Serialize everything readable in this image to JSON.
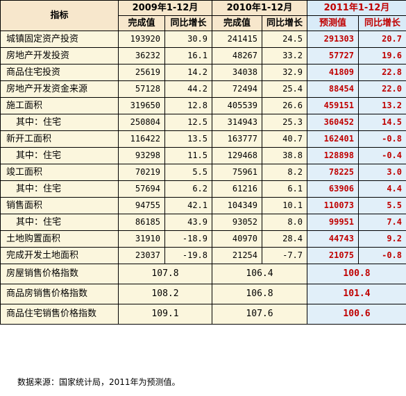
{
  "header": {
    "indicator": "指标",
    "periods": [
      "2009年1-12月",
      "2010年1-12月",
      "2011年1-12月"
    ],
    "sub": [
      "完成值",
      "同比增长",
      "完成值",
      "同比增长",
      "预测值",
      "同比增长"
    ]
  },
  "rows": [
    {
      "name": "城镇固定资产投资",
      "sub": false,
      "v": [
        "193920",
        "30.9",
        "241415",
        "24.5",
        "291303",
        "20.7"
      ]
    },
    {
      "name": "房地产开发投资",
      "sub": false,
      "v": [
        "36232",
        "16.1",
        "48267",
        "33.2",
        "57727",
        "19.6"
      ]
    },
    {
      "name": "商品住宅投资",
      "sub": false,
      "v": [
        "25619",
        "14.2",
        "34038",
        "32.9",
        "41809",
        "22.8"
      ]
    },
    {
      "name": "房地产开发资金来源",
      "sub": false,
      "v": [
        "57128",
        "44.2",
        "72494",
        "25.4",
        "88454",
        "22.0"
      ]
    },
    {
      "name": "施工面积",
      "sub": false,
      "v": [
        "319650",
        "12.8",
        "405539",
        "26.6",
        "459151",
        "13.2"
      ]
    },
    {
      "name": "其中：住宅",
      "sub": true,
      "v": [
        "250804",
        "12.5",
        "314943",
        "25.3",
        "360452",
        "14.5"
      ]
    },
    {
      "name": "新开工面积",
      "sub": false,
      "v": [
        "116422",
        "13.5",
        "163777",
        "40.7",
        "162401",
        "-0.8"
      ]
    },
    {
      "name": "其中：住宅",
      "sub": true,
      "v": [
        "93298",
        "11.5",
        "129468",
        "38.8",
        "128898",
        "-0.4"
      ]
    },
    {
      "name": "竣工面积",
      "sub": false,
      "v": [
        "70219",
        "5.5",
        "75961",
        "8.2",
        "78225",
        "3.0"
      ]
    },
    {
      "name": "其中：住宅",
      "sub": true,
      "v": [
        "57694",
        "6.2",
        "61216",
        "6.1",
        "63906",
        "4.4"
      ]
    },
    {
      "name": "销售面积",
      "sub": false,
      "v": [
        "94755",
        "42.1",
        "104349",
        "10.1",
        "110073",
        "5.5"
      ]
    },
    {
      "name": "其中：住宅",
      "sub": true,
      "v": [
        "86185",
        "43.9",
        "93052",
        "8.0",
        "99951",
        "7.4"
      ]
    },
    {
      "name": "土地购置面积",
      "sub": false,
      "v": [
        "31910",
        "-18.9",
        "40970",
        "28.4",
        "44743",
        "9.2"
      ]
    },
    {
      "name": "完成开发土地面积",
      "sub": false,
      "v": [
        "23037",
        "-19.8",
        "21254",
        "-7.7",
        "21075",
        "-0.8"
      ]
    }
  ],
  "index_rows": [
    {
      "name": "房屋销售价格指数",
      "v": [
        "107.8",
        "106.4",
        "100.8"
      ]
    },
    {
      "name": "商品房销售价格指数",
      "v": [
        "108.2",
        "106.8",
        "101.4"
      ]
    },
    {
      "name": "商品住宅销售价格指数",
      "v": [
        "109.1",
        "107.6",
        "100.6"
      ]
    }
  ],
  "source": "数据来源：国家统计局，2011年为预测值。",
  "colors": {
    "header_bg": "#f7e7cc",
    "forecast_bg": "#d9ebf8",
    "body_bg": "#fbf6dd",
    "forecast_text": "#c00000"
  }
}
